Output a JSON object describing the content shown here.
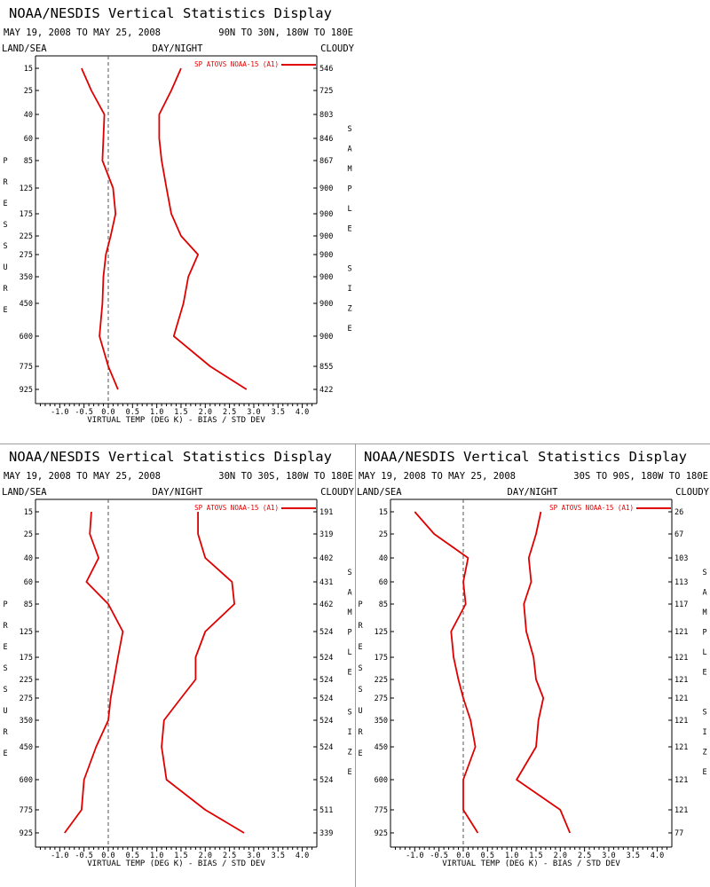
{
  "colors": {
    "series": "#e00000",
    "axis": "#000000",
    "zero_line": "#555555",
    "divider": "#9e9e9e"
  },
  "panels": [
    {
      "title": "NOAA/NESDIS Vertical Statistics Display",
      "date_range": "MAY 19, 2008 TO MAY 25, 2008",
      "region": "90N TO 30N, 180W TO 180E",
      "label_left": "LAND/SEA",
      "label_center": "DAY/NIGHT",
      "label_right": "CLOUDY",
      "left_axis_title": "PRESSURE",
      "right_axis_title": "SAMPLE SIZE",
      "legend": "SP ATOVS NOAA-15 (A1)",
      "xlabel": "VIRTUAL TEMP (DEG K) - BIAS / STD DEV",
      "sample_sizes": [
        "546",
        "725",
        "803",
        "846",
        "867",
        "900",
        "900",
        "900",
        "900",
        "900",
        "900",
        "900",
        "855",
        "422"
      ],
      "chart_data": {
        "type": "line",
        "x_ticks": [
          "-1.0",
          "-0.5",
          "0.0",
          "0.5",
          "1.0",
          "1.5",
          "2.0",
          "2.5",
          "3.0",
          "3.5",
          "4.0"
        ],
        "xlim": [
          -1.5,
          4.3
        ],
        "pressure_levels": [
          "15",
          "25",
          "40",
          "60",
          "85",
          "125",
          "175",
          "225",
          "275",
          "350",
          "450",
          "600",
          "775",
          "925"
        ],
        "series": [
          {
            "role": "bias",
            "values": [
              -0.55,
              -0.35,
              -0.08,
              -0.1,
              -0.12,
              0.1,
              0.15,
              0.05,
              -0.05,
              -0.1,
              -0.12,
              -0.18,
              0.0,
              0.2
            ]
          },
          {
            "role": "std_dev",
            "values": [
              1.5,
              1.3,
              1.05,
              1.05,
              1.1,
              1.2,
              1.3,
              1.5,
              1.85,
              1.65,
              1.55,
              1.35,
              2.1,
              2.85
            ]
          }
        ]
      }
    },
    {
      "title": "NOAA/NESDIS Vertical Statistics Display",
      "date_range": "MAY 19, 2008 TO MAY 25, 2008",
      "region": "30N TO 30S, 180W TO 180E",
      "label_left": "LAND/SEA",
      "label_center": "DAY/NIGHT",
      "label_right": "CLOUDY",
      "left_axis_title": "PRESSURE",
      "right_axis_title": "SAMPLE SIZE",
      "legend": "SP ATOVS NOAA-15 (A1)",
      "xlabel": "VIRTUAL TEMP (DEG K) - BIAS / STD DEV",
      "sample_sizes": [
        "191",
        "319",
        "402",
        "431",
        "462",
        "524",
        "524",
        "524",
        "524",
        "524",
        "524",
        "524",
        "511",
        "339"
      ],
      "chart_data": {
        "type": "line",
        "x_ticks": [
          "-1.0",
          "-0.5",
          "0.0",
          "0.5",
          "1.0",
          "1.5",
          "2.0",
          "2.5",
          "3.0",
          "3.5",
          "4.0"
        ],
        "xlim": [
          -1.5,
          4.3
        ],
        "pressure_levels": [
          "15",
          "25",
          "40",
          "60",
          "85",
          "125",
          "175",
          "225",
          "275",
          "350",
          "450",
          "600",
          "775",
          "925"
        ],
        "series": [
          {
            "role": "bias",
            "values": [
              -0.35,
              -0.38,
              -0.2,
              -0.45,
              0.0,
              0.3,
              0.2,
              0.12,
              0.05,
              0.0,
              -0.25,
              -0.5,
              -0.55,
              -0.9
            ]
          },
          {
            "role": "std_dev",
            "values": [
              1.85,
              1.85,
              2.0,
              2.55,
              2.6,
              2.0,
              1.8,
              1.8,
              1.5,
              1.15,
              1.1,
              1.2,
              2.0,
              2.8
            ]
          }
        ]
      }
    },
    {
      "title": "NOAA/NESDIS Vertical Statistics Display",
      "date_range": "MAY 19, 2008 TO MAY 25, 2008",
      "region": "30S TO 90S, 180W TO 180E",
      "label_left": "LAND/SEA",
      "label_center": "DAY/NIGHT",
      "label_right": "CLOUDY",
      "left_axis_title": "PRESSURE",
      "right_axis_title": "SAMPLE SIZE",
      "legend": "SP ATOVS NOAA-15 (A1)",
      "xlabel": "VIRTUAL TEMP (DEG K) - BIAS / STD DEV",
      "sample_sizes": [
        "26",
        "67",
        "103",
        "113",
        "117",
        "121",
        "121",
        "121",
        "121",
        "121",
        "121",
        "121",
        "121",
        "77"
      ],
      "chart_data": {
        "type": "line",
        "x_ticks": [
          "-1.0",
          "-0.5",
          "0.0",
          "0.5",
          "1.0",
          "1.5",
          "2.0",
          "2.5",
          "3.0",
          "3.5",
          "4.0"
        ],
        "xlim": [
          -1.5,
          4.3
        ],
        "pressure_levels": [
          "15",
          "25",
          "40",
          "60",
          "85",
          "125",
          "175",
          "225",
          "275",
          "350",
          "450",
          "600",
          "775",
          "925"
        ],
        "series": [
          {
            "role": "bias",
            "values": [
              -1.0,
              -0.6,
              0.1,
              0.0,
              0.05,
              -0.25,
              -0.2,
              -0.1,
              0.0,
              0.15,
              0.25,
              0.0,
              0.0,
              0.3
            ]
          },
          {
            "role": "std_dev",
            "values": [
              1.6,
              1.5,
              1.35,
              1.4,
              1.25,
              1.3,
              1.45,
              1.5,
              1.65,
              1.55,
              1.5,
              1.1,
              2.0,
              2.2
            ]
          }
        ]
      }
    }
  ]
}
